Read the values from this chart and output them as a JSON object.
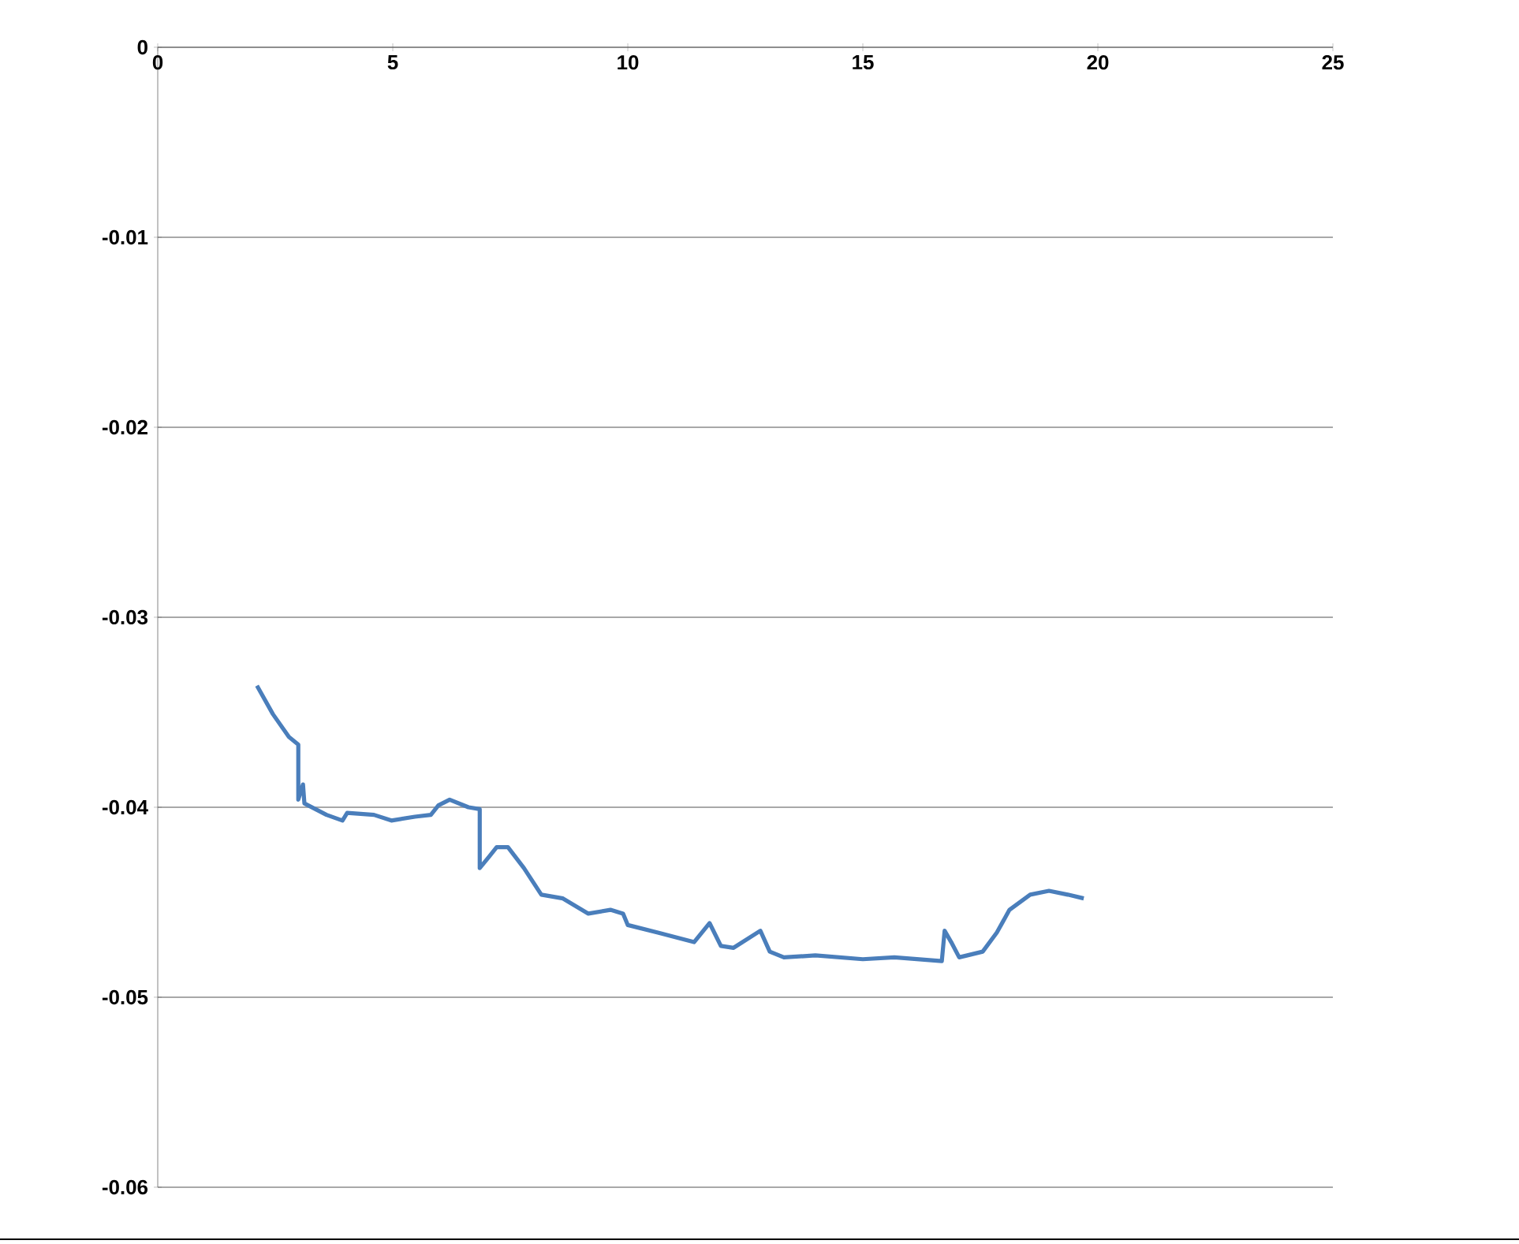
{
  "chart_data": {
    "type": "line",
    "xlim": [
      0,
      25
    ],
    "xticks": [
      0,
      5,
      10,
      15,
      20,
      25
    ],
    "ylim": [
      -0.06,
      0
    ],
    "yticks": [
      -0.06,
      -0.05,
      -0.04,
      -0.03,
      -0.02,
      -0.01,
      0
    ],
    "grid": "y",
    "marker": "none",
    "line_style": "solid",
    "series": [
      {
        "color": "#4a7ebb",
        "x": [
          2.11,
          2.45,
          2.79,
          2.99,
          2.99,
          3.09,
          3.12,
          3.59,
          3.93,
          4.03,
          4.6,
          4.97,
          5.47,
          5.81,
          5.97,
          6.21,
          6.61,
          6.85,
          6.85,
          7.05,
          7.21,
          7.45,
          7.79,
          8.16,
          8.62,
          9.16,
          9.63,
          9.9,
          10.0,
          10.64,
          11.41,
          11.74,
          11.98,
          12.25,
          12.82,
          13.02,
          13.32,
          13.99,
          15.0,
          15.67,
          16.68,
          16.74,
          16.88,
          17.05,
          17.55,
          17.85,
          18.12,
          18.56,
          18.96,
          19.36,
          19.7
        ],
        "values": [
          -0.0336,
          -0.0351,
          -0.0363,
          -0.0367,
          -0.0396,
          -0.0388,
          -0.0398,
          -0.0404,
          -0.0407,
          -0.0403,
          -0.0404,
          -0.0407,
          -0.0405,
          -0.0404,
          -0.0399,
          -0.0396,
          -0.04,
          -0.0401,
          -0.0432,
          -0.0426,
          -0.0421,
          -0.0421,
          -0.0432,
          -0.0446,
          -0.0448,
          -0.0456,
          -0.0454,
          -0.0456,
          -0.0462,
          -0.0466,
          -0.0471,
          -0.0461,
          -0.0473,
          -0.0474,
          -0.0465,
          -0.0476,
          -0.0479,
          -0.0478,
          -0.048,
          -0.0479,
          -0.0481,
          -0.0465,
          -0.0471,
          -0.0479,
          -0.0476,
          -0.0466,
          -0.0454,
          -0.0446,
          -0.0444,
          -0.0446,
          -0.0448
        ]
      }
    ]
  }
}
